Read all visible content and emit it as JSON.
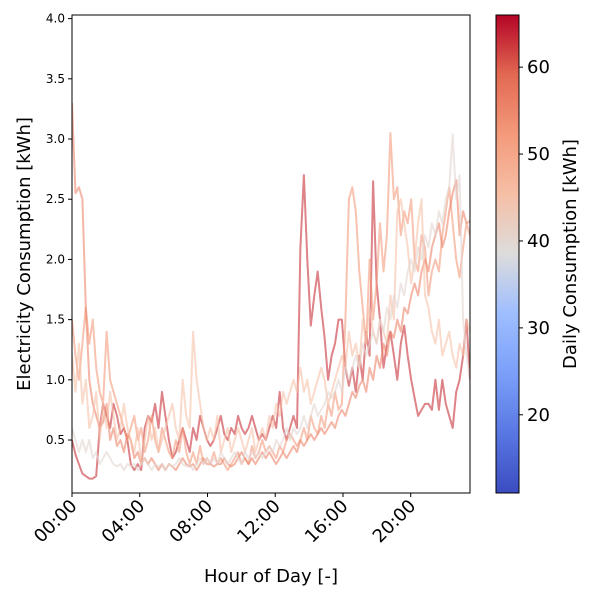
{
  "chart_data": {
    "type": "line",
    "xlabel": "Hour of Day [-]",
    "ylabel": "Electricity Consumption [kWh]",
    "colorbar_label": "Daily Consumption [kWh]",
    "colormap": "coolwarm",
    "x_range": [
      "00:00",
      "23:30"
    ],
    "x_tick_labels": [
      "00:00",
      "04:00",
      "08:00",
      "12:00",
      "16:00",
      "20:00"
    ],
    "ylim": [
      0.06,
      4.03
    ],
    "y_ticks": [
      0.5,
      1.0,
      1.5,
      2.0,
      2.5,
      3.0,
      3.5,
      4.0
    ],
    "y_tick_labels": [
      "0.5",
      "1.0",
      "1.5",
      "2.0",
      "2.5",
      "3.0",
      "3.5",
      "4.0"
    ],
    "colorbar_range": [
      11,
      66
    ],
    "colorbar_ticks": [
      20,
      30,
      40,
      50,
      60
    ],
    "grid": false,
    "legend": "none",
    "series": [
      {
        "daily_kwh": 63,
        "values": [
          0.5,
          0.38,
          0.3,
          0.22,
          0.2,
          0.18,
          0.18,
          0.2,
          0.6,
          0.8,
          0.7,
          0.6,
          0.8,
          0.7,
          0.55,
          0.6,
          0.5,
          0.3,
          0.25,
          0.3,
          0.25,
          0.6,
          0.7,
          0.65,
          0.8,
          0.6,
          0.9,
          0.7,
          0.5,
          0.35,
          0.4,
          0.5,
          0.6,
          0.5,
          0.4,
          0.6,
          0.5,
          0.7,
          0.6,
          0.5,
          0.45,
          0.5,
          0.6,
          0.7,
          0.55,
          0.5,
          0.6,
          0.55,
          0.7,
          0.6,
          0.55,
          0.6,
          0.7,
          0.6,
          0.5,
          0.55,
          0.5,
          0.6,
          0.7,
          0.6,
          0.9,
          0.6,
          0.5,
          0.6,
          0.7,
          0.6,
          2.1,
          2.7,
          2.0,
          1.45,
          1.7,
          1.9,
          1.6,
          1.35,
          1.0,
          1.2,
          1.3,
          1.5,
          1.5,
          1.1,
          0.95,
          1.1,
          0.9,
          1.2,
          1.0,
          1.4,
          1.2,
          2.65,
          1.8,
          1.5,
          1.1,
          1.3,
          1.4,
          1.2,
          1.0,
          1.3,
          1.45,
          1.2,
          1.0,
          0.85,
          0.7,
          0.75,
          0.8,
          0.8,
          0.75,
          1.0,
          0.75,
          1.0,
          0.8,
          0.7,
          0.6,
          0.9,
          1.0,
          1.2,
          1.5,
          1.0
        ]
      },
      {
        "daily_kwh": 52,
        "values": [
          1.5,
          1.2,
          1.0,
          1.3,
          1.6,
          1.3,
          1.5,
          1.1,
          0.9,
          0.8,
          1.4,
          1.0,
          0.9,
          0.8,
          0.7,
          0.6,
          0.5,
          0.6,
          0.7,
          0.5,
          0.6,
          0.4,
          0.5,
          0.7,
          0.5,
          0.4,
          0.6,
          0.5,
          0.4,
          0.35,
          0.5,
          0.4,
          0.6,
          0.4,
          0.3,
          0.4,
          0.3,
          0.45,
          0.3,
          0.35,
          0.3,
          0.4,
          0.3,
          0.35,
          0.3,
          0.25,
          0.3,
          0.35,
          0.4,
          0.3,
          0.35,
          0.3,
          0.45,
          0.35,
          0.4,
          0.5,
          0.4,
          0.45,
          0.4,
          0.35,
          0.45,
          0.4,
          0.5,
          0.55,
          0.5,
          0.45,
          0.5,
          0.6,
          0.5,
          0.7,
          0.6,
          0.55,
          0.7,
          0.6,
          0.8,
          0.7,
          0.9,
          0.75,
          0.8,
          1.5,
          2.5,
          2.6,
          2.4,
          1.9,
          1.6,
          1.3,
          2.0,
          1.5,
          1.8,
          2.3,
          1.9,
          2.2,
          3.05,
          2.5,
          2.6,
          2.2,
          2.4,
          2.3,
          2.5,
          2.0,
          1.9,
          2.2,
          2.1,
          1.7,
          1.9,
          2.0,
          1.9,
          2.2,
          2.4,
          2.6,
          2.3,
          2.0,
          1.85,
          2.1,
          2.3,
          2.2
        ]
      },
      {
        "daily_kwh": 55,
        "values": [
          3.3,
          2.55,
          2.6,
          2.5,
          1.6,
          1.0,
          0.8,
          0.7,
          0.6,
          0.65,
          0.8,
          0.5,
          0.6,
          0.45,
          0.5,
          0.4,
          0.55,
          0.5,
          0.35,
          0.4,
          0.3,
          0.35,
          0.3,
          0.35,
          0.3,
          0.25,
          0.3,
          0.25,
          0.3,
          0.28,
          0.25,
          0.3,
          0.35,
          0.3,
          0.28,
          0.3,
          0.25,
          0.3,
          0.35,
          0.3,
          0.3,
          0.28,
          0.3,
          0.3,
          0.35,
          0.3,
          0.28,
          0.3,
          0.35,
          0.4,
          0.35,
          0.3,
          0.35,
          0.3,
          0.35,
          0.4,
          0.35,
          0.4,
          0.35,
          0.3,
          0.35,
          0.4,
          0.35,
          0.4,
          0.45,
          0.4,
          0.5,
          0.45,
          0.5,
          0.55,
          0.5,
          0.55,
          0.6,
          0.55,
          0.6,
          0.65,
          0.6,
          0.7,
          0.75,
          0.7,
          0.8,
          0.9,
          0.85,
          0.95,
          1.0,
          0.9,
          1.1,
          1.0,
          1.2,
          1.1,
          1.3,
          1.2,
          1.4,
          1.35,
          1.5,
          1.4,
          1.6,
          1.55,
          1.7,
          1.8,
          1.7,
          1.9,
          2.0,
          1.9,
          2.1,
          2.2,
          2.3,
          2.1,
          2.2,
          2.4,
          2.55,
          2.66,
          2.2,
          2.4,
          2.3,
          2.32
        ]
      },
      {
        "daily_kwh": 45,
        "values": [
          1.2,
          0.9,
          1.3,
          0.8,
          1.0,
          0.6,
          0.7,
          0.9,
          0.5,
          0.8,
          0.6,
          0.9,
          0.7,
          0.5,
          0.6,
          0.8,
          0.6,
          0.5,
          0.4,
          0.6,
          0.3,
          0.5,
          0.7,
          0.5,
          0.6,
          0.4,
          0.5,
          0.6,
          0.7,
          0.8,
          0.6,
          0.5,
          1.0,
          0.7,
          0.6,
          1.4,
          1.0,
          0.8,
          0.6,
          0.5,
          0.6,
          0.5,
          0.7,
          0.4,
          0.5,
          0.6,
          0.4,
          0.5,
          0.6,
          0.5,
          0.4,
          0.5,
          0.6,
          0.4,
          0.5,
          0.6,
          0.5,
          0.7,
          0.6,
          0.8,
          0.7,
          0.9,
          0.8,
          0.9,
          1.0,
          0.9,
          1.1,
          0.9,
          1.0,
          0.8,
          0.9,
          1.0,
          1.1,
          1.0,
          0.8,
          0.9,
          1.0,
          1.1,
          1.2,
          1.1,
          1.4,
          1.2,
          1.3,
          1.1,
          1.5,
          1.3,
          1.6,
          1.4,
          1.3,
          1.5,
          1.4,
          1.3,
          1.7,
          1.5,
          2.4,
          2.5,
          2.3,
          2.1,
          1.8,
          2.0,
          2.3,
          2.5,
          1.7,
          1.6,
          1.4,
          1.3,
          1.5,
          1.2,
          1.3,
          1.4,
          1.2,
          1.1,
          1.3,
          1.2,
          1.5,
          1.4
        ]
      },
      {
        "daily_kwh": 40,
        "values": [
          0.6,
          0.5,
          0.4,
          0.5,
          0.4,
          0.5,
          0.35,
          0.4,
          0.3,
          0.35,
          0.4,
          0.35,
          0.3,
          0.28,
          0.3,
          0.25,
          0.3,
          0.28,
          0.3,
          0.25,
          0.3,
          0.35,
          0.3,
          0.25,
          0.3,
          0.28,
          0.3,
          0.25,
          0.3,
          0.28,
          0.3,
          0.35,
          0.3,
          0.28,
          0.3,
          0.25,
          0.3,
          0.35,
          0.3,
          0.35,
          0.3,
          0.35,
          0.3,
          0.4,
          0.35,
          0.3,
          0.35,
          0.4,
          0.35,
          0.3,
          0.4,
          0.35,
          0.4,
          0.35,
          0.4,
          0.35,
          0.4,
          0.45,
          0.4,
          0.5,
          0.45,
          0.5,
          0.6,
          0.5,
          0.6,
          0.55,
          0.6,
          0.7,
          0.6,
          0.7,
          0.8,
          0.7,
          0.75,
          0.8,
          0.9,
          0.85,
          0.9,
          1.0,
          0.9,
          1.1,
          1.0,
          1.1,
          1.2,
          1.1,
          1.3,
          1.2,
          1.3,
          1.4,
          1.3,
          1.5,
          1.4,
          1.6,
          1.5,
          1.7,
          1.6,
          1.8,
          1.7,
          1.9,
          2.0,
          1.9,
          2.1,
          2.0,
          2.2,
          2.1,
          2.3,
          2.2,
          2.4,
          2.3,
          2.5,
          2.6,
          3.04,
          2.5,
          2.7,
          1.5,
          1.2,
          1.0
        ]
      }
    ]
  }
}
